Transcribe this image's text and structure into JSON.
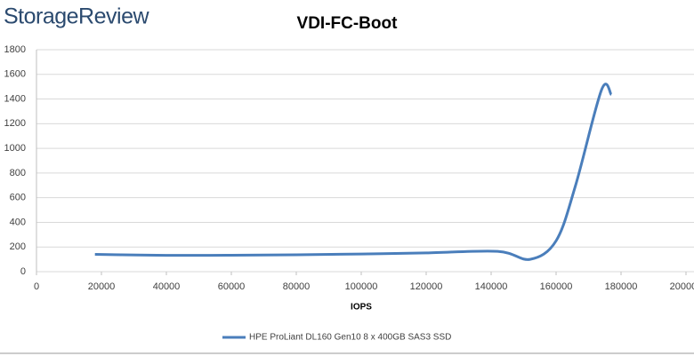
{
  "brand": "StorageReview",
  "chart_data": {
    "type": "line",
    "title": "VDI-FC-Boot",
    "x_label": "IOPS",
    "x": [
      18000,
      40000,
      60000,
      80000,
      100000,
      120000,
      142000,
      152000,
      160000,
      166000,
      174000,
      177000
    ],
    "series": [
      {
        "name": "HPE ProLiant DL160 Gen10 8 x 400GB SAS3 SSD",
        "color": "#4a7ebb",
        "values": [
          140,
          132,
          133,
          137,
          143,
          152,
          165,
          100,
          250,
          700,
          1475,
          1435
        ]
      }
    ],
    "xlim": [
      0,
      200000
    ],
    "xticks": [
      0,
      20000,
      40000,
      60000,
      80000,
      100000,
      120000,
      140000,
      160000,
      180000,
      200000
    ],
    "ylim": [
      0,
      1800
    ],
    "yticks": [
      0,
      200,
      400,
      600,
      800,
      1000,
      1200,
      1400,
      1600,
      1800
    ],
    "grid": true,
    "legend": "bottom"
  }
}
